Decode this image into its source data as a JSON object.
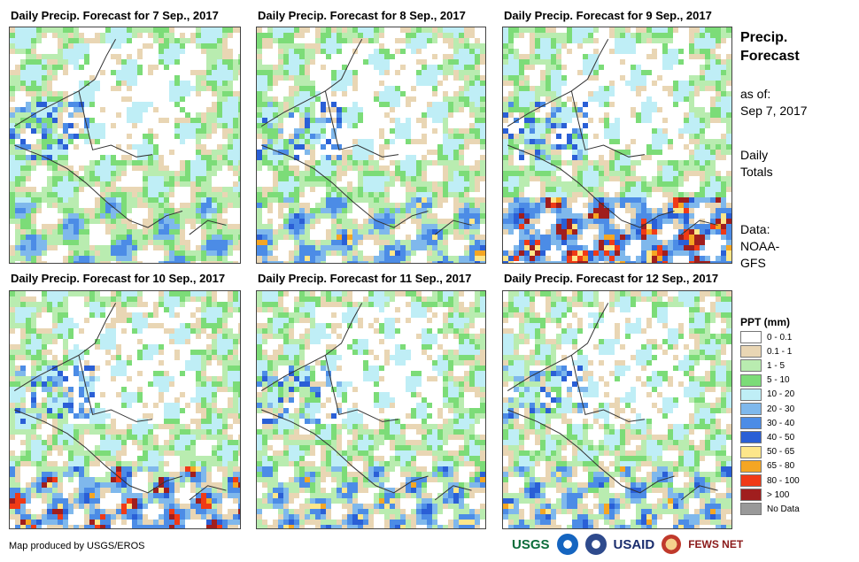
{
  "panels": [
    {
      "title": "Daily Precip. Forecast for 7 Sep., 2017",
      "heavy": 0
    },
    {
      "title": "Daily Precip. Forecast for 8 Sep., 2017",
      "heavy": 1
    },
    {
      "title": "Daily Precip. Forecast for 9 Sep., 2017",
      "heavy": 3
    },
    {
      "title": "Daily Precip. Forecast for 10 Sep., 2017",
      "heavy": 2
    },
    {
      "title": "Daily Precip. Forecast for 11 Sep., 2017",
      "heavy": 1
    },
    {
      "title": "Daily Precip. Forecast for 12 Sep., 2017",
      "heavy": 1
    }
  ],
  "sidebar": {
    "title_line1": "Precip.",
    "title_line2": "Forecast",
    "asof_line1": "as of:",
    "asof_line2": "Sep 7, 2017",
    "totals_line1": "Daily",
    "totals_line2": "Totals",
    "data_line1": "Data:",
    "data_line2": "NOAA-",
    "data_line3": "GFS"
  },
  "legend": {
    "title": "PPT (mm)",
    "items": [
      {
        "label": "0 - 0.1",
        "color": "#ffffff"
      },
      {
        "label": "0.1 - 1",
        "color": "#e9d6b4"
      },
      {
        "label": "1 - 5",
        "color": "#b9ecb0"
      },
      {
        "label": "5 - 10",
        "color": "#7cdc78"
      },
      {
        "label": "10 - 20",
        "color": "#bfeef6"
      },
      {
        "label": "20 - 30",
        "color": "#7fb8ec"
      },
      {
        "label": "30 - 40",
        "color": "#4c8ce6"
      },
      {
        "label": "40 - 50",
        "color": "#2a5fd6"
      },
      {
        "label": "50 - 65",
        "color": "#fde68a"
      },
      {
        "label": "65 - 80",
        "color": "#f5a623"
      },
      {
        "label": "80 - 100",
        "color": "#f03a16"
      },
      {
        "label": "> 100",
        "color": "#a01e1e"
      },
      {
        "label": "No Data",
        "color": "#999999"
      }
    ]
  },
  "footer": {
    "credit": "Map produced by USGS/EROS",
    "logos": [
      "USGS",
      "NOAA",
      "USAID",
      "FEWS NET"
    ]
  }
}
